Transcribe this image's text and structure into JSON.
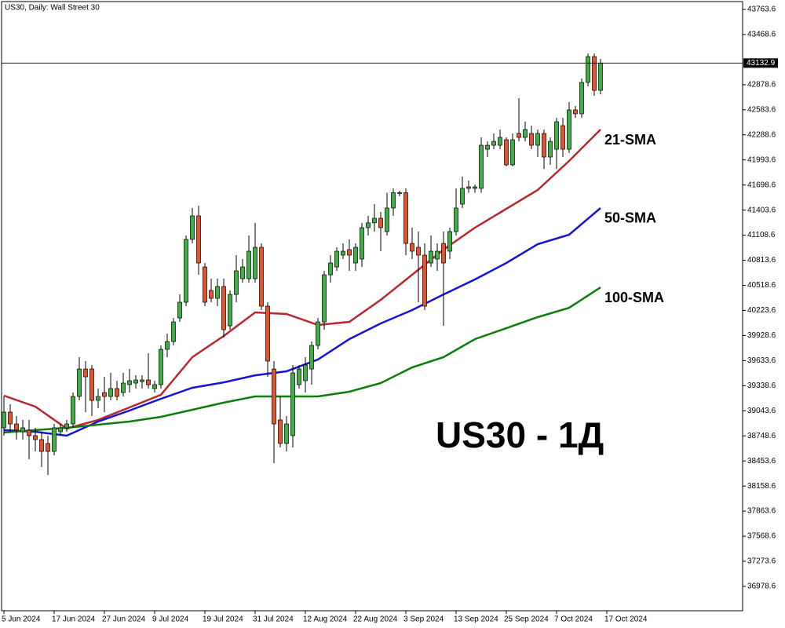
{
  "chart_data": {
    "type": "candlestick",
    "title": "US30, Daily:  Wall Street 30",
    "annotation": "US30 - 1Д",
    "up_color": "#3cb043",
    "down_color": "#e8512c",
    "ohlc": {
      "open": [
        38843,
        39028,
        38889,
        38797,
        38816,
        38751,
        38705,
        38659,
        38566,
        38797,
        38843,
        38889,
        39212,
        39535,
        39535,
        39166,
        39258,
        39212,
        39305,
        39258,
        39351,
        39369,
        39387,
        39406,
        39305,
        39351,
        39766,
        39858,
        40135,
        40320,
        41059,
        41336,
        40735,
        40459,
        40366,
        40505,
        40043,
        40412,
        40597,
        40597,
        40597,
        40966,
        40274,
        39535,
        38936,
        38659,
        38751,
        39351,
        39397,
        39535,
        39812,
        40089,
        40643,
        40735,
        40874,
        40939,
        40782,
        40828,
        41197,
        41254,
        41308,
        41151,
        41428,
        41608,
        41608,
        41012,
        40966,
        40874,
        40782,
        40828,
        41012,
        40920,
        41151,
        41474,
        41677,
        41659,
        41659,
        42120,
        42166,
        42166,
        42231,
        41936,
        42305,
        42259,
        42305,
        42166,
        42305,
        42028,
        42120,
        42397,
        42120,
        42582,
        42536,
        42905,
        43209,
        42812
      ],
      "high": [
        39212,
        39120,
        38982,
        38936,
        38936,
        38843,
        38797,
        38751,
        38889,
        38889,
        38936,
        39258,
        39674,
        39628,
        39582,
        39305,
        39443,
        39489,
        39397,
        39489,
        39535,
        39462,
        39462,
        39720,
        39397,
        39812,
        39951,
        40135,
        40412,
        41105,
        41428,
        41455,
        40782,
        40597,
        40597,
        40597,
        40459,
        40874,
        40828,
        41105,
        41254,
        41012,
        40320,
        39628,
        39212,
        38982,
        39582,
        39582,
        39674,
        39858,
        40135,
        40689,
        40874,
        40966,
        41012,
        41059,
        41012,
        41254,
        41336,
        41474,
        41382,
        41608,
        41659,
        41631,
        41659,
        41197,
        41151,
        41012,
        41105,
        41012,
        41151,
        41197,
        41659,
        41797,
        41751,
        41705,
        42259,
        42212,
        42305,
        42351,
        42259,
        42305,
        42720,
        42443,
        42397,
        42351,
        42351,
        42259,
        42489,
        42489,
        42674,
        42628,
        42951,
        43246,
        43246,
        43182
      ],
      "low": [
        38751,
        38797,
        38705,
        38705,
        38474,
        38566,
        38381,
        38289,
        38520,
        38751,
        38797,
        38843,
        39166,
        39028,
        38982,
        39074,
        39028,
        39166,
        39166,
        39212,
        39258,
        39305,
        39305,
        39305,
        39258,
        39305,
        39674,
        39812,
        40089,
        40274,
        41012,
        40643,
        40274,
        40320,
        40274,
        39905,
        39997,
        40320,
        40551,
        40551,
        40551,
        40228,
        39443,
        38428,
        38612,
        38566,
        38612,
        39305,
        39258,
        39351,
        39766,
        39997,
        40551,
        40689,
        40828,
        40689,
        40689,
        40735,
        41105,
        41151,
        40920,
        41105,
        41336,
        41566,
        40874,
        40828,
        40320,
        40228,
        40735,
        40689,
        40043,
        40828,
        41105,
        41428,
        41608,
        41608,
        41608,
        42028,
        42120,
        42120,
        41917,
        41917,
        42212,
        42212,
        42120,
        42028,
        41889,
        41936,
        41889,
        42028,
        42074,
        42489,
        42489,
        42859,
        42748,
        42766
      ],
      "close": [
        39028,
        38889,
        38816,
        38843,
        38751,
        38705,
        38566,
        38566,
        38843,
        38843,
        38889,
        39212,
        39535,
        39443,
        39166,
        39212,
        39212,
        39305,
        39212,
        39369,
        39397,
        39406,
        39406,
        39351,
        39351,
        39766,
        39858,
        40089,
        40320,
        41059,
        41336,
        40782,
        40320,
        40366,
        40505,
        39997,
        40412,
        40689,
        40735,
        40920,
        40966,
        40274,
        39628,
        38889,
        38659,
        38889,
        39489,
        39535,
        39582,
        39812,
        40089,
        40643,
        40782,
        40920,
        40920,
        40874,
        40966,
        41197,
        41254,
        41308,
        41197,
        41428,
        41608,
        41608,
        41012,
        40920,
        40874,
        40274,
        40920,
        40920,
        40782,
        41151,
        41428,
        41659,
        41659,
        41677,
        42166,
        42166,
        42212,
        42259,
        41936,
        42231,
        42259,
        42351,
        42166,
        42305,
        42028,
        42212,
        42443,
        42120,
        42582,
        42536,
        42905,
        43209,
        42812,
        43133
      ]
    },
    "series": [
      {
        "name": "21-SMA",
        "color": "#b8282c",
        "x": [
          0,
          5,
          10,
          15,
          20,
          25,
          30,
          35,
          40,
          45,
          50,
          55,
          60,
          65,
          70,
          75,
          80,
          85,
          90,
          95
        ],
        "values": [
          39222,
          39092,
          38834,
          38936,
          39083,
          39232,
          39674,
          39923,
          40200,
          40182,
          40052,
          40089,
          40348,
          40643,
          40939,
          41197,
          41419,
          41640,
          41982,
          42351
        ]
      },
      {
        "name": "50-SMA",
        "color": "#1414d6",
        "x": [
          0,
          5,
          10,
          15,
          20,
          25,
          30,
          35,
          40,
          45,
          50,
          55,
          60,
          65,
          70,
          75,
          80,
          85,
          90,
          95
        ],
        "values": [
          38816,
          38797,
          38751,
          38917,
          39046,
          39185,
          39314,
          39378,
          39461,
          39508,
          39646,
          39886,
          40071,
          40228,
          40412,
          40588,
          40782,
          41003,
          41114,
          41428
        ]
      },
      {
        "name": "100-SMA",
        "color": "#0b7d0b",
        "x": [
          0,
          5,
          10,
          15,
          20,
          25,
          30,
          35,
          40,
          45,
          50,
          55,
          60,
          65,
          70,
          75,
          80,
          85,
          90,
          95
        ],
        "values": [
          38788,
          38816,
          38843,
          38880,
          38917,
          38972,
          39055,
          39139,
          39212,
          39212,
          39212,
          39268,
          39369,
          39554,
          39674,
          39886,
          40015,
          40145,
          40255,
          40495
        ]
      }
    ],
    "current_price": 43132.9,
    "xlim": [
      -0.375,
      117.625
    ],
    "xticks": [
      {
        "value": 0,
        "label": "5 Jun 2024"
      },
      {
        "value": 8,
        "label": "17 Jun 2024"
      },
      {
        "value": 16,
        "label": "27 Jun 2024"
      },
      {
        "value": 24,
        "label": "9 Jul 2024"
      },
      {
        "value": 32,
        "label": "19 Jul 2024"
      },
      {
        "value": 40,
        "label": "31 Jul 2024"
      },
      {
        "value": 48,
        "label": "12 Aug 2024"
      },
      {
        "value": 56,
        "label": "22 Aug 2024"
      },
      {
        "value": 64,
        "label": "3 Sep 2024"
      },
      {
        "value": 72,
        "label": "13 Sep 2024"
      },
      {
        "value": 80,
        "label": "25 Sep 2024"
      },
      {
        "value": 88,
        "label": "7 Oct 2024"
      },
      {
        "value": 96,
        "label": "17 Oct 2024"
      }
    ],
    "ylim": [
      36692,
      43856
    ],
    "yticks": [
      36978.6,
      37273.6,
      37568.6,
      37863.6,
      38158.6,
      38453.6,
      38748.6,
      39043.6,
      39338.6,
      39633.6,
      39928.6,
      40223.6,
      40518.6,
      40813.6,
      41108.6,
      41403.6,
      41698.6,
      41993.6,
      42288.6,
      42583.6,
      42878.6,
      43468.6,
      43763.6
    ]
  }
}
